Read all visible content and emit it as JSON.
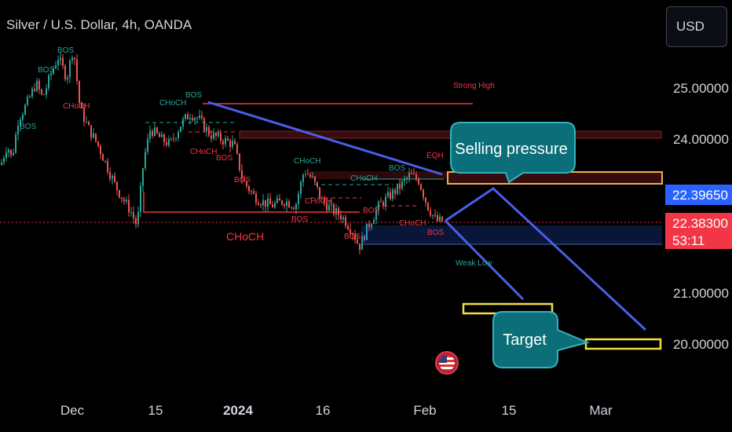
{
  "header": {
    "title": "Silver / U.S. Dollar, 4h, OANDA",
    "currency_button": "USD"
  },
  "colors": {
    "bg": "#000000",
    "up": "#26a69a",
    "down": "#ef5350",
    "trendline": "#4a5ee8",
    "bos_green": "#26a69a",
    "bos_red": "#f23645",
    "callout_fill": "#0b6e78",
    "callout_border": "#33b3bd",
    "target_box": "#f0e040",
    "price_tag_blue": "#2962ff",
    "price_tag_red": "#f23645"
  },
  "chart_data": {
    "type": "candlestick",
    "symbol": "Silver / U.S. Dollar",
    "interval": "4h",
    "source": "OANDA",
    "x_ticks": [
      "Dec",
      "15",
      "2024",
      "16",
      "Feb",
      "15",
      "Mar"
    ],
    "y_ticks": [
      25.0,
      24.0,
      21.0,
      20.0
    ],
    "y_tick_labels": [
      "25.00000",
      "24.00000",
      "21.00000",
      "20.00000"
    ],
    "ylim": [
      19.4,
      25.9
    ],
    "price_labels": [
      {
        "value": "22.39650",
        "color": "#2962ff"
      },
      {
        "value": "22.38300",
        "color": "#f23645",
        "countdown": "53:11"
      }
    ],
    "series_path": [
      [
        0,
        23.5
      ],
      [
        0.3,
        23.9
      ],
      [
        0.5,
        23.6
      ],
      [
        0.8,
        24.4
      ],
      [
        1.2,
        24.7
      ],
      [
        1.6,
        25.1
      ],
      [
        1.9,
        24.8
      ],
      [
        2.3,
        25.3
      ],
      [
        2.6,
        25.6
      ],
      [
        3.0,
        25.2
      ],
      [
        3.3,
        25.8
      ],
      [
        3.6,
        24.6
      ],
      [
        4.0,
        24.2
      ],
      [
        4.4,
        23.9
      ],
      [
        4.8,
        23.5
      ],
      [
        5.2,
        23.1
      ],
      [
        5.6,
        22.8
      ],
      [
        5.9,
        22.6
      ],
      [
        6.2,
        22.3
      ],
      [
        6.5,
        23.6
      ],
      [
        6.8,
        24.2
      ],
      [
        7.3,
        24.0
      ],
      [
        7.7,
        23.9
      ],
      [
        8.2,
        24.3
      ],
      [
        8.6,
        24.5
      ],
      [
        9.0,
        24.4
      ],
      [
        9.5,
        24.1
      ],
      [
        10.0,
        24.0
      ],
      [
        10.6,
        23.9
      ],
      [
        11.0,
        23.2
      ],
      [
        11.5,
        22.9
      ],
      [
        11.8,
        22.8
      ],
      [
        12.3,
        22.7
      ],
      [
        12.9,
        22.8
      ],
      [
        13.4,
        22.7
      ],
      [
        13.8,
        23.4
      ],
      [
        14.2,
        23.2
      ],
      [
        14.6,
        22.8
      ],
      [
        15.1,
        22.6
      ],
      [
        15.5,
        22.5
      ],
      [
        16.0,
        22.2
      ],
      [
        16.3,
        21.9
      ],
      [
        16.7,
        22.3
      ],
      [
        17.2,
        22.7
      ],
      [
        17.7,
        22.9
      ],
      [
        18.2,
        23.1
      ],
      [
        18.6,
        23.3
      ],
      [
        19.0,
        23.2
      ],
      [
        19.4,
        22.7
      ],
      [
        19.8,
        22.4
      ],
      [
        20.1,
        22.4
      ]
    ],
    "annotations": [
      {
        "text": "Strong High",
        "color": "red"
      },
      {
        "text": "EQH",
        "color": "red"
      },
      {
        "text": "Weak Low",
        "color": "green"
      },
      {
        "text": "CHoCH",
        "color": "red"
      },
      {
        "text": "CHoCH",
        "color": "green"
      },
      {
        "text": "BOS",
        "color": "green"
      },
      {
        "text": "BOS",
        "color": "red"
      },
      {
        "text": "Selling pressure",
        "callout": true
      },
      {
        "text": "Target",
        "callout": true
      }
    ],
    "levels": {
      "strong_high": 24.65,
      "upper_zone": [
        23.95,
        24.12
      ],
      "supply_zone": [
        23.28,
        23.42
      ],
      "choch_low": 22.55,
      "demand_zone": [
        22.0,
        22.33
      ],
      "target_box_1": [
        20.6,
        20.75
      ],
      "target_box_2": [
        19.95,
        20.1
      ]
    },
    "grid": false,
    "legend": "none"
  },
  "labels": {
    "strong_high": "Strong High",
    "eqh": "EQH",
    "weak_low": "Weak Low",
    "choch_big": "CHoCH",
    "selling_pressure": "Selling pressure",
    "target": "Target",
    "bos": "BOS",
    "choch": "CHoCH"
  }
}
